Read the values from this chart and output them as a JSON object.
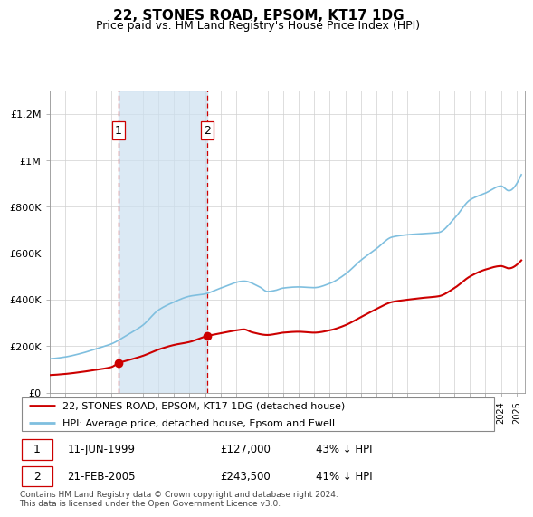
{
  "title": "22, STONES ROAD, EPSOM, KT17 1DG",
  "subtitle": "Price paid vs. HM Land Registry's House Price Index (HPI)",
  "hpi_color": "#7fbfdf",
  "price_color": "#cc0000",
  "vline_color": "#cc0000",
  "shade_color": "#cce0f0",
  "ylim": [
    0,
    1300000
  ],
  "yticks": [
    0,
    200000,
    400000,
    600000,
    800000,
    1000000,
    1200000
  ],
  "ytick_labels": [
    "£0",
    "£200K",
    "£400K",
    "£600K",
    "£800K",
    "£1M",
    "£1.2M"
  ],
  "purchases": [
    {
      "date_num": 1999.44,
      "price": 127000,
      "label": "1"
    },
    {
      "date_num": 2005.13,
      "price": 243500,
      "label": "2"
    }
  ],
  "legend_entries": [
    "22, STONES ROAD, EPSOM, KT17 1DG (detached house)",
    "HPI: Average price, detached house, Epsom and Ewell"
  ],
  "table_rows": [
    {
      "num": "1",
      "date": "11-JUN-1999",
      "price": "£127,000",
      "pct": "43% ↓ HPI"
    },
    {
      "num": "2",
      "date": "21-FEB-2005",
      "price": "£243,500",
      "pct": "41% ↓ HPI"
    }
  ],
  "footnote": "Contains HM Land Registry data © Crown copyright and database right 2024.\nThis data is licensed under the Open Government Licence v3.0.",
  "xmin": 1995.0,
  "xmax": 2025.5,
  "hpi_keypoints": [
    [
      1995.0,
      145000
    ],
    [
      1996.0,
      153000
    ],
    [
      1997.0,
      168000
    ],
    [
      1998.0,
      188000
    ],
    [
      1999.0,
      210000
    ],
    [
      2000.0,
      248000
    ],
    [
      2001.0,
      290000
    ],
    [
      2002.0,
      355000
    ],
    [
      2003.0,
      390000
    ],
    [
      2004.0,
      415000
    ],
    [
      2005.0,
      425000
    ],
    [
      2006.0,
      450000
    ],
    [
      2007.5,
      480000
    ],
    [
      2008.5,
      455000
    ],
    [
      2009.0,
      435000
    ],
    [
      2009.5,
      440000
    ],
    [
      2010.0,
      450000
    ],
    [
      2011.0,
      455000
    ],
    [
      2012.0,
      452000
    ],
    [
      2013.0,
      470000
    ],
    [
      2014.0,
      510000
    ],
    [
      2015.0,
      570000
    ],
    [
      2016.0,
      620000
    ],
    [
      2017.0,
      670000
    ],
    [
      2018.0,
      680000
    ],
    [
      2019.0,
      685000
    ],
    [
      2020.0,
      690000
    ],
    [
      2021.0,
      750000
    ],
    [
      2022.0,
      830000
    ],
    [
      2023.0,
      860000
    ],
    [
      2024.0,
      890000
    ],
    [
      2024.5,
      870000
    ],
    [
      2025.0,
      900000
    ]
  ],
  "price_keypoints": [
    [
      1995.0,
      75000
    ],
    [
      1996.0,
      80000
    ],
    [
      1997.0,
      88000
    ],
    [
      1998.0,
      98000
    ],
    [
      1999.0,
      110000
    ],
    [
      1999.44,
      127000
    ],
    [
      2000.0,
      138000
    ],
    [
      2001.0,
      158000
    ],
    [
      2002.0,
      185000
    ],
    [
      2003.0,
      205000
    ],
    [
      2004.0,
      218000
    ],
    [
      2005.13,
      243500
    ],
    [
      2006.0,
      255000
    ],
    [
      2007.0,
      268000
    ],
    [
      2007.5,
      272000
    ],
    [
      2008.0,
      260000
    ],
    [
      2009.0,
      248000
    ],
    [
      2010.0,
      258000
    ],
    [
      2011.0,
      262000
    ],
    [
      2012.0,
      258000
    ],
    [
      2013.0,
      268000
    ],
    [
      2014.0,
      290000
    ],
    [
      2015.0,
      325000
    ],
    [
      2016.0,
      360000
    ],
    [
      2017.0,
      390000
    ],
    [
      2018.0,
      400000
    ],
    [
      2019.0,
      408000
    ],
    [
      2020.0,
      415000
    ],
    [
      2021.0,
      450000
    ],
    [
      2022.0,
      500000
    ],
    [
      2023.0,
      530000
    ],
    [
      2024.0,
      545000
    ],
    [
      2024.5,
      535000
    ],
    [
      2025.0,
      550000
    ]
  ]
}
